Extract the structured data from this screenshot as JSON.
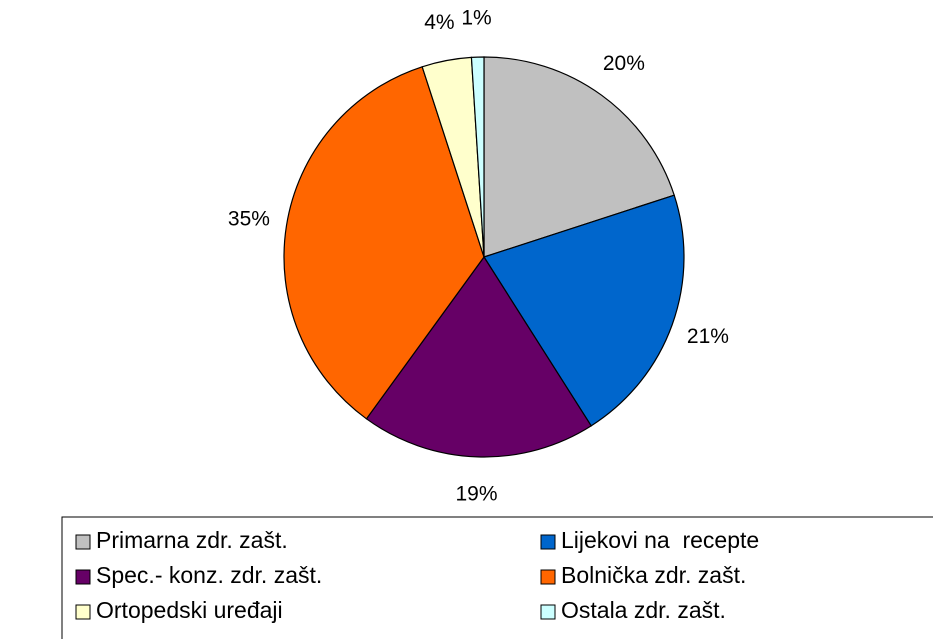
{
  "chart_data": {
    "type": "pie",
    "categories": [
      "Primarna zdr. zašt.",
      "Lijekovi na  recepte",
      "Spec.- konz. zdr. zašt.",
      "Bolnička zdr. zašt.",
      "Ortopedski uređaji",
      "Ostala zdr. zašt."
    ],
    "values": [
      20,
      21,
      19,
      35,
      4,
      1
    ],
    "value_labels": [
      "20%",
      "21%",
      "19%",
      "35%",
      "4%",
      "1%"
    ],
    "colors": [
      "#c0c0c0",
      "#0066cc",
      "#660066",
      "#ff6600",
      "#ffffcc",
      "#ccffff"
    ],
    "legend": "bottom"
  }
}
